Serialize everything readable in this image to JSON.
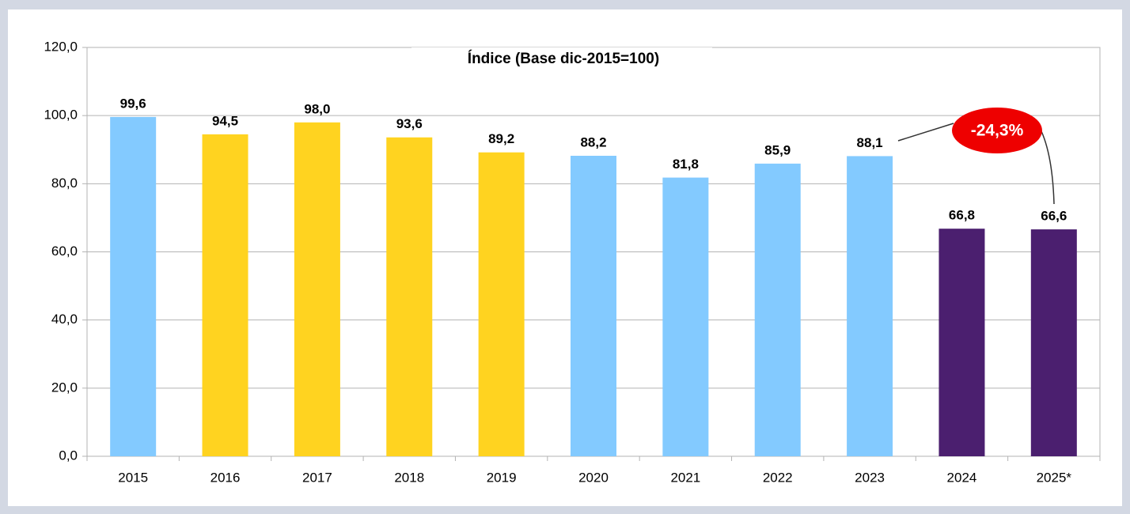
{
  "chart_data": {
    "type": "bar",
    "title": "Índice (Base dic-2015=100)",
    "categories": [
      "2015",
      "2016",
      "2017",
      "2018",
      "2019",
      "2020",
      "2021",
      "2022",
      "2023",
      "2024",
      "2025*"
    ],
    "values": [
      99.6,
      94.5,
      98.0,
      93.6,
      89.2,
      88.2,
      81.8,
      85.9,
      88.1,
      66.8,
      66.6
    ],
    "value_labels": [
      "99,6",
      "94,5",
      "98,0",
      "93,6",
      "89,2",
      "88,2",
      "81,8",
      "85,9",
      "88,1",
      "66,8",
      "66,6"
    ],
    "colors": [
      "#83caff",
      "#ffd320",
      "#ffd320",
      "#ffd320",
      "#ffd320",
      "#83caff",
      "#83caff",
      "#83caff",
      "#83caff",
      "#4b1f6f",
      "#4b1f6f"
    ],
    "ylim": [
      0,
      120
    ],
    "yticks": [
      {
        "value": 0,
        "label": "0,0"
      },
      {
        "value": 20,
        "label": "20,0"
      },
      {
        "value": 40,
        "label": "40,0"
      },
      {
        "value": 60,
        "label": "60,0"
      },
      {
        "value": 80,
        "label": "80,0"
      },
      {
        "value": 100,
        "label": "100,0"
      },
      {
        "value": 120,
        "label": "120,0"
      }
    ],
    "grid": true,
    "annotation": "-24,3%"
  }
}
